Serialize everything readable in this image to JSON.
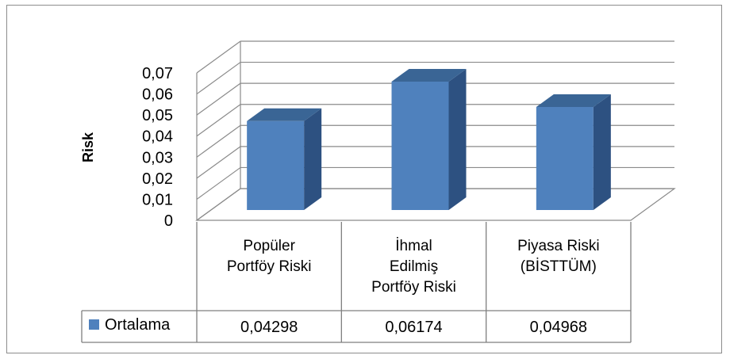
{
  "chart_data": {
    "type": "bar",
    "ylabel": "Risk",
    "ylim": [
      0,
      0.07
    ],
    "yticks": [
      "0",
      "0,01",
      "0,02",
      "0,03",
      "0,04",
      "0,05",
      "0,06",
      "0,07"
    ],
    "grid": true,
    "categories": [
      [
        "Popüler",
        "Portföy Riski"
      ],
      [
        "İhmal",
        "Edilmiş",
        "Portföy Riski"
      ],
      [
        "Piyasa Riski",
        "(BİSTTÜM)"
      ]
    ],
    "series": [
      {
        "name": "Ortalama",
        "values": [
          0.04298,
          0.06174,
          0.04968
        ],
        "value_labels": [
          "0,04298",
          "0,06174",
          "0,04968"
        ],
        "color": "#4f81bd"
      }
    ],
    "legend_placement": "table-left"
  }
}
